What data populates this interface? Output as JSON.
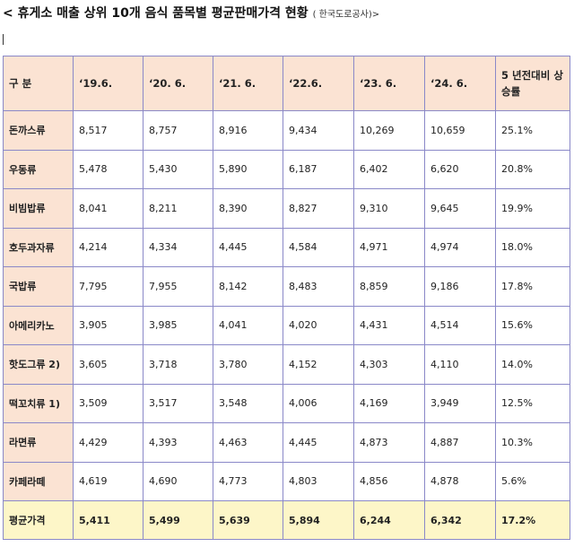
{
  "title": "< 휴게소 매출 상위 10개 음식 품목별 평균판매가격 현황",
  "source": "( 한국도로공사)>",
  "table": {
    "headers": [
      "구 분",
      "‘19.6.",
      "‘20. 6.",
      "‘21. 6.",
      "‘22.6.",
      "‘23. 6.",
      "‘24. 6.",
      "5 년전대비 상승률"
    ],
    "rows": [
      {
        "label": "돈까스류",
        "values": [
          "8,517",
          "8,757",
          "8,916",
          "9,434",
          "10,269",
          "10,659",
          "25.1%"
        ]
      },
      {
        "label": "우동류",
        "values": [
          "5,478",
          "5,430",
          "5,890",
          "6,187",
          "6,402",
          "6,620",
          "20.8%"
        ]
      },
      {
        "label": "비빔밥류",
        "values": [
          "8,041",
          "8,211",
          "8,390",
          "8,827",
          "9,310",
          "9,645",
          "19.9%"
        ]
      },
      {
        "label": "호두과자류",
        "values": [
          "4,214",
          "4,334",
          "4,445",
          "4,584",
          "4,971",
          "4,974",
          "18.0%"
        ]
      },
      {
        "label": "국밥류",
        "values": [
          "7,795",
          "7,955",
          "8,142",
          "8,483",
          "8,859",
          "9,186",
          "17.8%"
        ]
      },
      {
        "label": "아메리카노",
        "values": [
          "3,905",
          "3,985",
          "4,041",
          "4,020",
          "4,431",
          "4,514",
          "15.6%"
        ]
      },
      {
        "label": "핫도그류 2)",
        "values": [
          "3,605",
          "3,718",
          "3,780",
          "4,152",
          "4,303",
          "4,110",
          "14.0%"
        ]
      },
      {
        "label": "떡꼬치류 1)",
        "values": [
          "3,509",
          "3,517",
          "3,548",
          "4,006",
          "4,169",
          "3,949",
          "12.5%"
        ]
      },
      {
        "label": "라면류",
        "values": [
          "4,429",
          "4,393",
          "4,463",
          "4,445",
          "4,873",
          "4,887",
          "10.3%"
        ]
      },
      {
        "label": "카페라떼",
        "values": [
          "4,619",
          "4,690",
          "4,773",
          "4,803",
          "4,856",
          "4,878",
          "5.6%"
        ]
      }
    ],
    "average": {
      "label": "평균가격",
      "values": [
        "5,411",
        "5,499",
        "5,639",
        "5,894",
        "6,244",
        "6,342",
        "17.2%"
      ]
    }
  }
}
